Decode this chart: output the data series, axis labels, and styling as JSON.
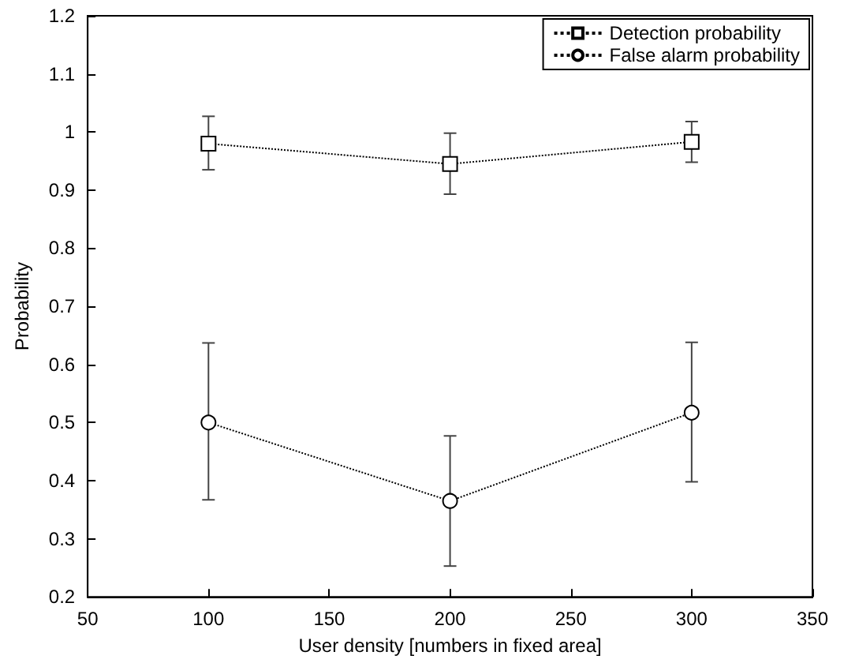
{
  "chart_data": {
    "type": "line",
    "xlabel": "User density [numbers in fixed area]",
    "ylabel": "Probability",
    "x": [
      100,
      200,
      300
    ],
    "series": [
      {
        "name": "Detection probability",
        "color": "#000000",
        "marker": "square",
        "values": [
          0.98,
          0.945,
          0.983
        ],
        "errors": [
          [
            0.935,
            1.027
          ],
          [
            0.893,
            0.998
          ],
          [
            0.948,
            1.018
          ]
        ]
      },
      {
        "name": "False alarm probability",
        "color": "#000000",
        "marker": "circle",
        "values": [
          0.5,
          0.365,
          0.517
        ],
        "errors": [
          [
            0.367,
            0.637
          ],
          [
            0.253,
            0.477
          ],
          [
            0.398,
            0.638
          ]
        ]
      }
    ],
    "xlim": [
      50,
      350
    ],
    "xticks": [
      50,
      100,
      150,
      200,
      250,
      300,
      350
    ],
    "ylim": [
      0.2,
      1.2
    ],
    "yticks": [
      0.2,
      0.3,
      0.4,
      0.5,
      0.6,
      0.7,
      0.8,
      0.9,
      1,
      1.1,
      1.2
    ],
    "line_style": "dotted",
    "grid": false,
    "legend": "top right"
  }
}
